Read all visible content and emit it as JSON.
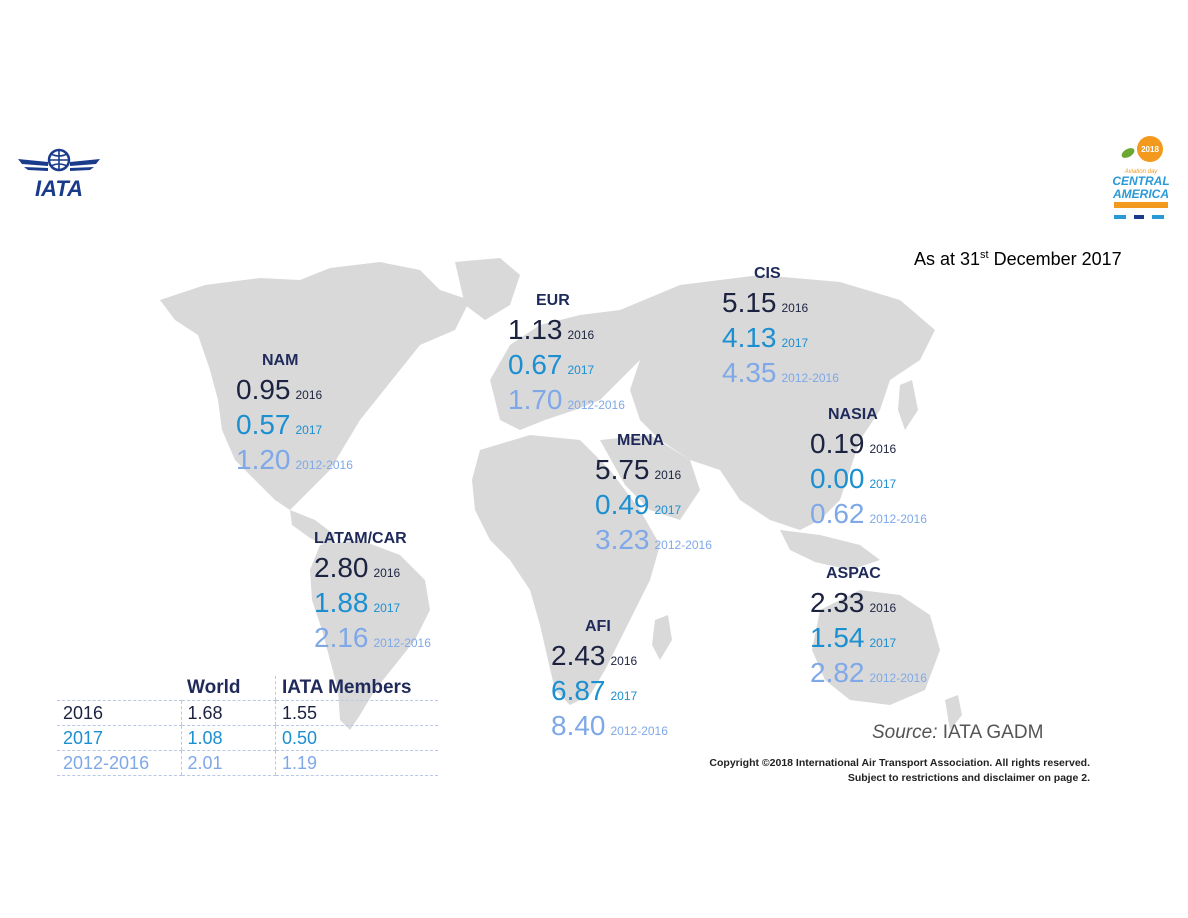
{
  "header": {
    "logo_text": "IATA",
    "event_logo": {
      "year": "2018",
      "line1": "Aviation day",
      "line2": "CENTRAL",
      "line3": "AMERICA"
    },
    "as_at_prefix": "As at 31",
    "as_at_sup": "st",
    "as_at_suffix": " December 2017"
  },
  "labels": {
    "y2016": "2016",
    "y2017": "2017",
    "y5": "2012-2016"
  },
  "regions": [
    {
      "name": "NAM",
      "v2016": "0.95",
      "v2017": "0.57",
      "v5": "1.20"
    },
    {
      "name": "EUR",
      "v2016": "1.13",
      "v2017": "0.67",
      "v5": "1.70"
    },
    {
      "name": "CIS",
      "v2016": "5.15",
      "v2017": "4.13",
      "v5": "4.35"
    },
    {
      "name": "MENA",
      "v2016": "5.75",
      "v2017": "0.49",
      "v5": "3.23"
    },
    {
      "name": "NASIA",
      "v2016": "0.19",
      "v2017": "0.00",
      "v5": "0.62"
    },
    {
      "name": "LATAM/CAR",
      "v2016": "2.80",
      "v2017": "1.88",
      "v5": "2.16"
    },
    {
      "name": "ASPAC",
      "v2016": "2.33",
      "v2017": "1.54",
      "v5": "2.82"
    },
    {
      "name": "AFI",
      "v2016": "2.43",
      "v2017": "6.87",
      "v5": "8.40"
    }
  ],
  "summary_table": {
    "headers": [
      "",
      "World",
      "IATA Members"
    ],
    "rows": [
      [
        "2016",
        "1.68",
        "1.55"
      ],
      [
        "2017",
        "1.08",
        "0.50"
      ],
      [
        "2012-2016",
        "2.01",
        "1.19"
      ]
    ]
  },
  "source": {
    "prefix": "Source:",
    "text": " IATA GADM"
  },
  "copyright": {
    "line1": "Copyright ©2018 International Air Transport Association. All rights reserved.",
    "line2": "Subject to restrictions and disclaimer on page 2."
  },
  "colors": {
    "land": "#d9d9d9",
    "value_2016": "#1c2340",
    "value_2017": "#1c8fd1",
    "value_2012_2016": "#7fa8e8",
    "region_name": "#1f2a5a",
    "iata_blue": "#1a3b8c"
  }
}
